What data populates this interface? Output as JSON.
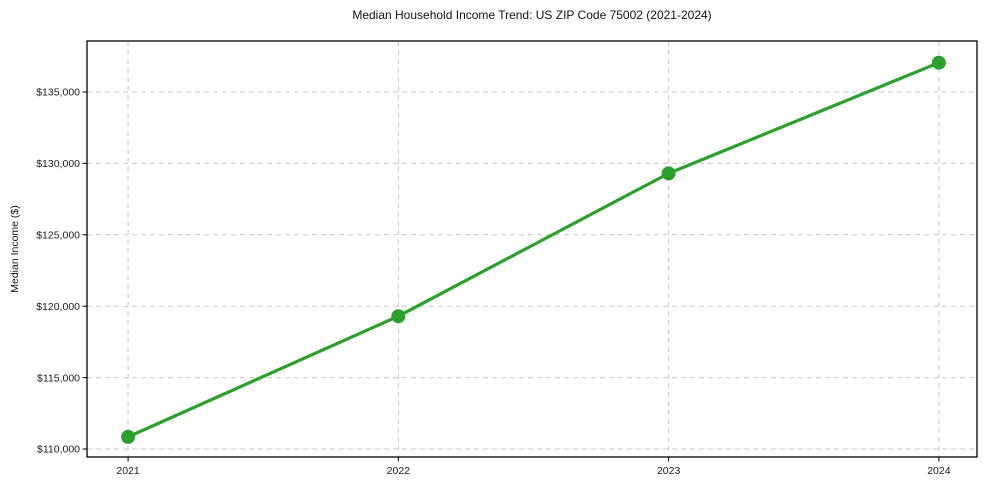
{
  "chart_data": {
    "type": "line",
    "title": "Median Household Income Trend: US ZIP Code 75002 (2021-2024)",
    "xlabel": "",
    "ylabel": "Median Income ($)",
    "x": [
      2021,
      2022,
      2023,
      2024
    ],
    "x_tick_labels": [
      "2021",
      "2022",
      "2023",
      "2024"
    ],
    "series": [
      {
        "name": "Median Household Income",
        "values": [
          110850,
          119300,
          129300,
          137050
        ]
      }
    ],
    "y_ticks": [
      110000,
      115000,
      120000,
      125000,
      130000,
      135000
    ],
    "y_tick_labels": [
      "$110,000",
      "$115,000",
      "$120,000",
      "$125,000",
      "$130,000",
      "$135,000"
    ],
    "xlim": [
      2020.848,
      2024.141
    ],
    "ylim": [
      109440,
      138570
    ],
    "grid": true,
    "grid_style": "dashed",
    "legend": false,
    "colors": {
      "line": "#2ca02c",
      "marker": "#2ca02c",
      "grid": "#c9c9c9",
      "spine": "#000000",
      "tick_text": "#1a1a1a",
      "background": "#ffffff"
    },
    "style": {
      "line_width": 3.2,
      "marker_radius": 7
    }
  }
}
